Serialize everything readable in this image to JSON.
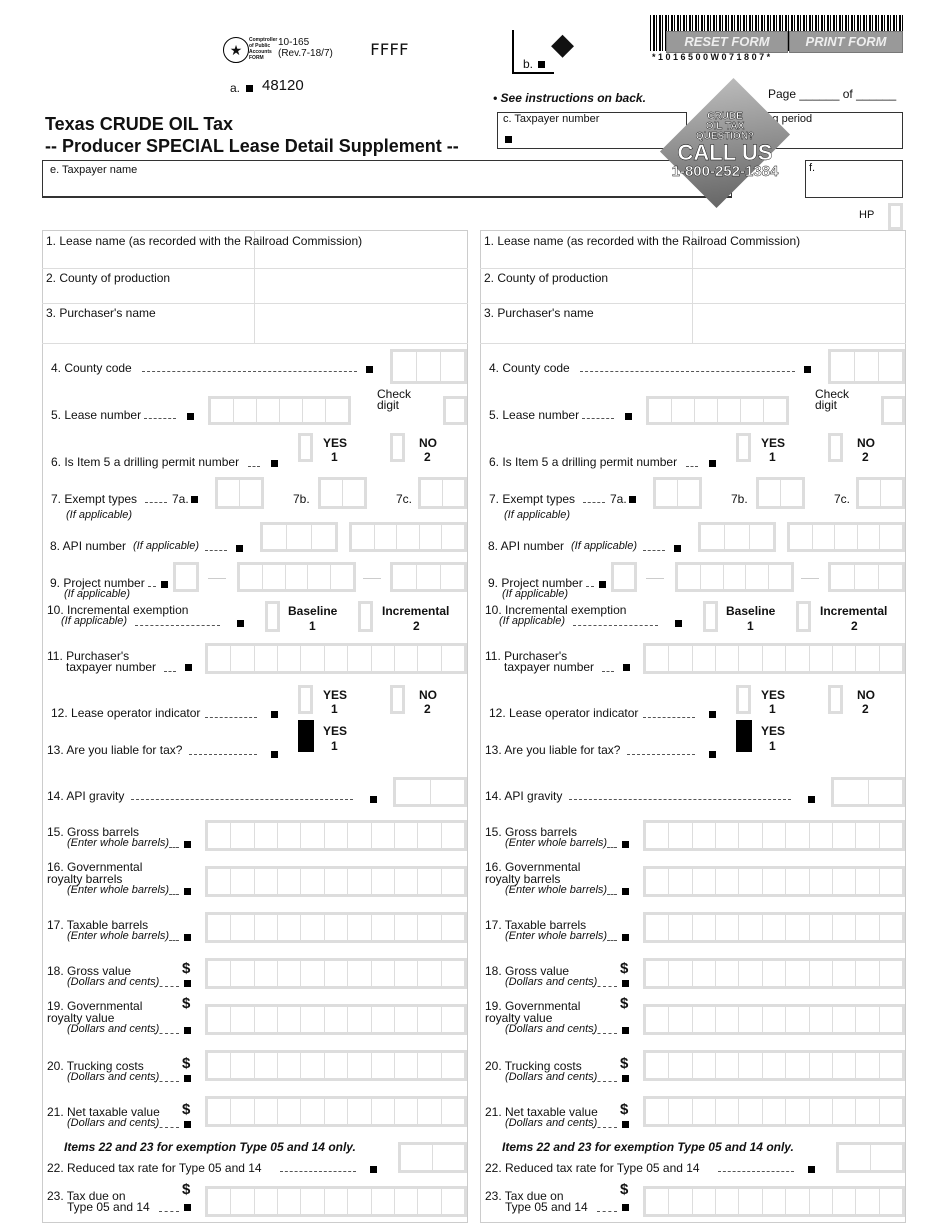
{
  "header": {
    "agency": "Comptroller of Public Accounts FORM",
    "form_number": "10-165",
    "revision": "(Rev.7-18/7)",
    "code": "FFFF",
    "a_label": "a.",
    "a_value": "48120",
    "b_label": "b.",
    "title1": "Texas CRUDE OIL Tax",
    "title2": "-- Producer SPECIAL Lease Detail Supplement --",
    "instructions": "• See instructions on back.",
    "page_label": "Page ______ of ______",
    "reset_button": "RESET FORM",
    "print_button": "PRINT FORM",
    "barcode_text": "*  1  0  1  6  5  0  0  W  0  7  1  8  0  7  *",
    "c_label": "c. Taxpayer number",
    "d_label": "d. Filing period",
    "e_label": "e. Taxpayer name",
    "f_label": "f.",
    "hp_label": "HP",
    "promo": {
      "line1": "CRUDE",
      "line2": "OIL TAX",
      "line3": "QUESTION?",
      "line4": "CALL US",
      "phone": "1-800-252-1384"
    }
  },
  "items": {
    "i1": "1. Lease name (as recorded with the Railroad Commission)",
    "i2": "2. County of production",
    "i3": "3. Purchaser's name",
    "i4": "4. County code",
    "i5": "5. Lease number",
    "check_digit": "Check digit",
    "i6": "6. Is Item 5 a drilling permit number",
    "yes": "YES",
    "no": "NO",
    "one": "1",
    "two": "2",
    "i7": "7. Exempt types",
    "i7a": "7a.",
    "i7b": "7b.",
    "i7c": "7c.",
    "if_applicable": "(If applicable)",
    "i8": "8. API number",
    "i9": "9. Project number",
    "i10": "10. Incremental exemption",
    "baseline": "Baseline",
    "incremental": "Incremental",
    "i11a": "11. Purchaser's",
    "i11b": "taxpayer number",
    "i12": "12. Lease operator indicator",
    "i13": "13. Are you liable for tax?",
    "i14": "14. API gravity",
    "i15": "15. Gross barrels",
    "whole": "(Enter whole barrels)",
    "i16a": "16. Governmental",
    "i16b": "royalty barrels",
    "i17": "17. Taxable barrels",
    "i18": "18. Gross value",
    "cents": "(Dollars and cents)",
    "i19a": "19. Governmental",
    "i19b": "royalty value",
    "i20": "20.  Trucking costs",
    "i21": "21. Net taxable value",
    "note": "Items 22 and 23 for exemption Type 05 and 14 only.",
    "i22": "22. Reduced tax rate for Type 05 and 14",
    "i23a": "23. Tax due on",
    "i23b": "Type 05 and 14",
    "dollar": "$"
  }
}
